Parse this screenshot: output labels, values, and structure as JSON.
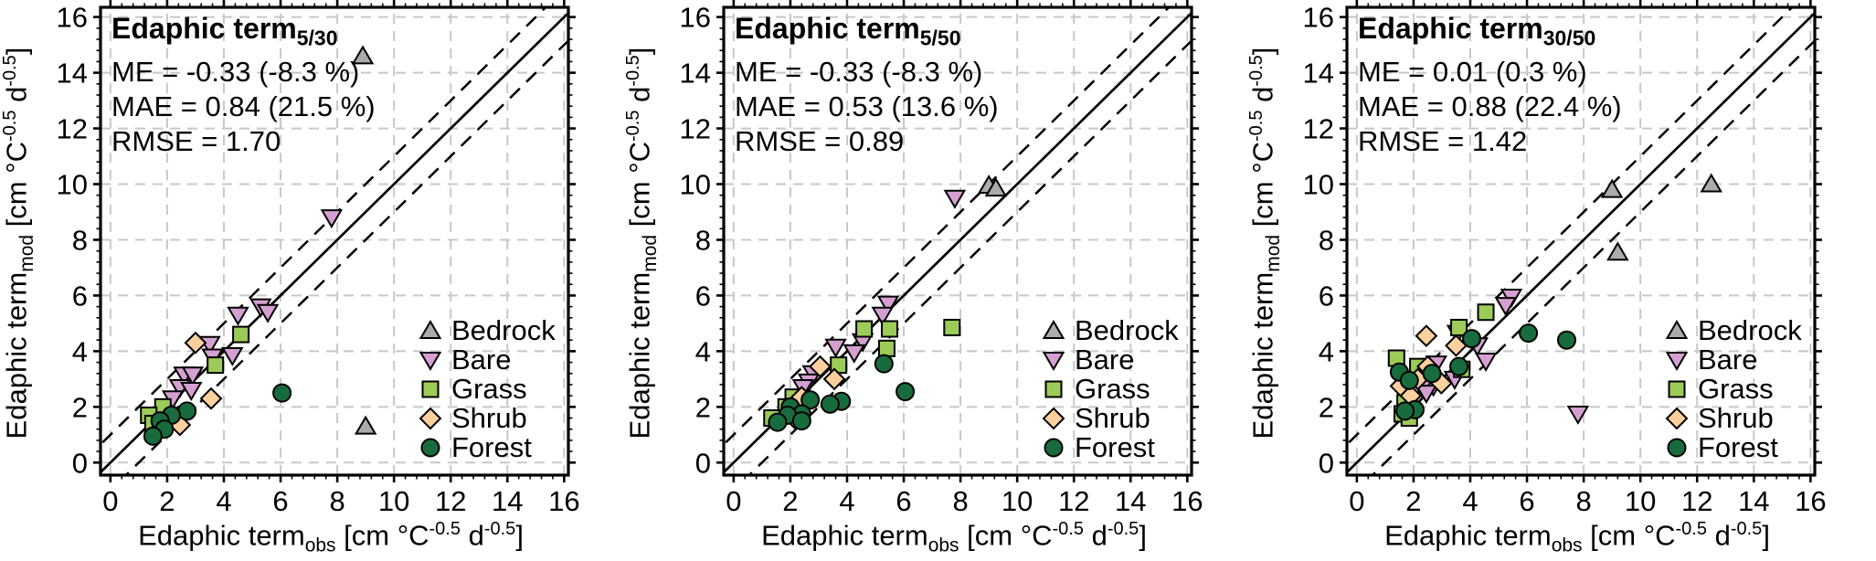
{
  "page": {
    "background": "#ffffff"
  },
  "axis": {
    "x_label_main": "Edaphic term",
    "x_label_sub": "obs",
    "y_label_main": "Edaphic term",
    "y_label_sub": "mod",
    "unit_pre": " [cm °C",
    "unit_exp1": "-0.5",
    "unit_mid": " d",
    "unit_exp2": "-0.5",
    "unit_post": "]",
    "tick_labels": [
      "0",
      "2",
      "4",
      "6",
      "8",
      "10",
      "12",
      "14",
      "16"
    ],
    "tick_values": [
      0,
      2,
      4,
      6,
      8,
      10,
      12,
      14,
      16
    ],
    "minor_step": 0.4,
    "range": [
      0,
      16
    ],
    "grid": true,
    "grid_color": "#c8c8c8",
    "frame_color": "#000000"
  },
  "legend_labels": [
    "Bedrock",
    "Bare",
    "Grass",
    "Shrub",
    "Forest"
  ],
  "chart_data": [
    {
      "type": "scatter",
      "title": "Edaphic term",
      "title_sub": "5/30",
      "stats_lines": [
        "ME = -0.33 (-8.3 %)",
        "MAE = 0.84 (21.5 %)",
        "RMSE = 1.70"
      ],
      "xlabel": "Edaphic term obs [cm C^-0.5 d^-0.5]",
      "ylabel": "Edaphic term mod [cm C^-0.5 d^-0.5]",
      "xlim": [
        0,
        16
      ],
      "ylim": [
        0,
        16
      ],
      "identity_line": true,
      "band_offsets": [
        1,
        -1
      ],
      "legend_position": "bottom-right",
      "series": [
        {
          "label": "Bedrock",
          "marker": "triangle-up",
          "color": "#ababab",
          "points": [
            [
              8.9,
              14.6
            ],
            [
              9.0,
              1.3
            ]
          ]
        },
        {
          "label": "Bare",
          "marker": "triangle-down",
          "color": "#d5a0d1",
          "points": [
            [
              7.8,
              8.8
            ],
            [
              5.3,
              5.6
            ],
            [
              5.55,
              5.4
            ],
            [
              4.5,
              5.3
            ],
            [
              3.5,
              4.25
            ],
            [
              4.3,
              3.85
            ],
            [
              3.6,
              3.8
            ],
            [
              2.6,
              3.15
            ],
            [
              2.9,
              3.15
            ],
            [
              2.45,
              2.7
            ],
            [
              2.85,
              2.6
            ],
            [
              2.2,
              2.3
            ]
          ]
        },
        {
          "label": "Grass",
          "marker": "square",
          "color": "#9ccb57",
          "points": [
            [
              4.6,
              4.6
            ],
            [
              3.7,
              3.5
            ],
            [
              1.85,
              2.0
            ],
            [
              1.35,
              1.7
            ],
            [
              1.5,
              1.4
            ]
          ]
        },
        {
          "label": "Shrub",
          "marker": "diamond",
          "color": "#fcd09c",
          "points": [
            [
              3.0,
              4.3
            ],
            [
              3.55,
              2.3
            ],
            [
              2.4,
              1.65
            ],
            [
              2.45,
              1.35
            ],
            [
              1.7,
              1.15
            ]
          ]
        },
        {
          "label": "Forest",
          "marker": "circle",
          "color": "#186b3c",
          "points": [
            [
              6.05,
              2.5
            ],
            [
              2.7,
              1.85
            ],
            [
              2.15,
              1.7
            ],
            [
              1.75,
              1.5
            ],
            [
              1.9,
              1.2
            ],
            [
              1.5,
              0.95
            ]
          ]
        }
      ]
    },
    {
      "type": "scatter",
      "title": "Edaphic term",
      "title_sub": "5/50",
      "stats_lines": [
        "ME = -0.33 (-8.3 %)",
        "MAE = 0.53 (13.6 %)",
        "RMSE = 0.89"
      ],
      "xlabel": "Edaphic term obs [cm C^-0.5 d^-0.5]",
      "ylabel": "Edaphic term mod [cm C^-0.5 d^-0.5]",
      "xlim": [
        0,
        16
      ],
      "ylim": [
        0,
        16
      ],
      "identity_line": true,
      "band_offsets": [
        1,
        -1
      ],
      "legend_position": "bottom-right",
      "series": [
        {
          "label": "Bedrock",
          "marker": "triangle-up",
          "color": "#ababab",
          "points": [
            [
              9.0,
              9.95
            ],
            [
              9.25,
              9.85
            ]
          ]
        },
        {
          "label": "Bare",
          "marker": "triangle-down",
          "color": "#d5a0d1",
          "points": [
            [
              7.8,
              9.5
            ],
            [
              5.45,
              5.7
            ],
            [
              5.25,
              5.3
            ],
            [
              4.55,
              4.35
            ],
            [
              3.6,
              4.15
            ],
            [
              4.25,
              3.95
            ],
            [
              2.8,
              3.2
            ],
            [
              2.65,
              2.9
            ],
            [
              2.45,
              2.7
            ]
          ]
        },
        {
          "label": "Grass",
          "marker": "square",
          "color": "#9ccb57",
          "points": [
            [
              4.6,
              4.8
            ],
            [
              5.5,
              4.8
            ],
            [
              7.7,
              4.85
            ],
            [
              5.4,
              4.1
            ],
            [
              3.7,
              3.5
            ],
            [
              2.1,
              2.35
            ],
            [
              1.85,
              2.0
            ],
            [
              1.35,
              1.6
            ]
          ]
        },
        {
          "label": "Shrub",
          "marker": "diamond",
          "color": "#fcd09c",
          "points": [
            [
              3.05,
              3.45
            ],
            [
              3.55,
              3.0
            ],
            [
              2.4,
              2.35
            ],
            [
              2.2,
              1.55
            ]
          ]
        },
        {
          "label": "Forest",
          "marker": "circle",
          "color": "#186b3c",
          "points": [
            [
              5.3,
              3.55
            ],
            [
              6.05,
              2.55
            ],
            [
              3.8,
              2.2
            ],
            [
              3.4,
              2.1
            ],
            [
              2.7,
              2.25
            ],
            [
              2.0,
              2.0
            ],
            [
              2.4,
              1.75
            ],
            [
              1.9,
              1.7
            ],
            [
              2.4,
              1.5
            ],
            [
              1.55,
              1.45
            ]
          ]
        }
      ]
    },
    {
      "type": "scatter",
      "title": "Edaphic term",
      "title_sub": "30/50",
      "stats_lines": [
        "ME = 0.01 (0.3 %)",
        "MAE = 0.88 (22.4 %)",
        "RMSE = 1.42"
      ],
      "xlabel": "Edaphic term obs [cm C^-0.5 d^-0.5]",
      "ylabel": "Edaphic term mod [cm C^-0.5 d^-0.5]",
      "xlim": [
        0,
        16
      ],
      "ylim": [
        0,
        16
      ],
      "identity_line": true,
      "band_offsets": [
        1,
        -1
      ],
      "legend_position": "bottom-right",
      "series": [
        {
          "label": "Bedrock",
          "marker": "triangle-up",
          "color": "#ababab",
          "points": [
            [
              9.0,
              9.8
            ],
            [
              12.5,
              10.0
            ],
            [
              9.2,
              7.55
            ]
          ]
        },
        {
          "label": "Bare",
          "marker": "triangle-down",
          "color": "#d5a0d1",
          "points": [
            [
              5.45,
              5.95
            ],
            [
              5.25,
              5.65
            ],
            [
              3.55,
              4.65
            ],
            [
              4.25,
              4.2
            ],
            [
              4.55,
              3.65
            ],
            [
              2.8,
              3.55
            ],
            [
              3.45,
              3.0
            ],
            [
              2.7,
              2.75
            ],
            [
              2.3,
              2.7
            ],
            [
              2.45,
              2.5
            ],
            [
              7.8,
              1.75
            ]
          ]
        },
        {
          "label": "Grass",
          "marker": "square",
          "color": "#9ccb57",
          "points": [
            [
              4.55,
              5.4
            ],
            [
              3.6,
              4.85
            ],
            [
              1.4,
              3.75
            ],
            [
              2.15,
              3.45
            ],
            [
              3.7,
              3.35
            ],
            [
              1.7,
              2.15
            ],
            [
              1.6,
              1.75
            ],
            [
              1.85,
              1.6
            ]
          ]
        },
        {
          "label": "Shrub",
          "marker": "diamond",
          "color": "#fcd09c",
          "points": [
            [
              2.45,
              4.55
            ],
            [
              3.5,
              4.2
            ],
            [
              2.5,
              3.45
            ],
            [
              2.15,
              3.0
            ],
            [
              2.98,
              2.85
            ],
            [
              1.55,
              2.75
            ],
            [
              1.9,
              2.4
            ]
          ]
        },
        {
          "label": "Forest",
          "marker": "circle",
          "color": "#186b3c",
          "points": [
            [
              4.05,
              4.45
            ],
            [
              6.05,
              4.65
            ],
            [
              7.4,
              4.4
            ],
            [
              3.6,
              3.45
            ],
            [
              1.5,
              3.25
            ],
            [
              2.65,
              3.2
            ],
            [
              1.85,
              2.95
            ],
            [
              2.05,
              1.9
            ],
            [
              1.7,
              1.85
            ]
          ]
        }
      ]
    }
  ]
}
